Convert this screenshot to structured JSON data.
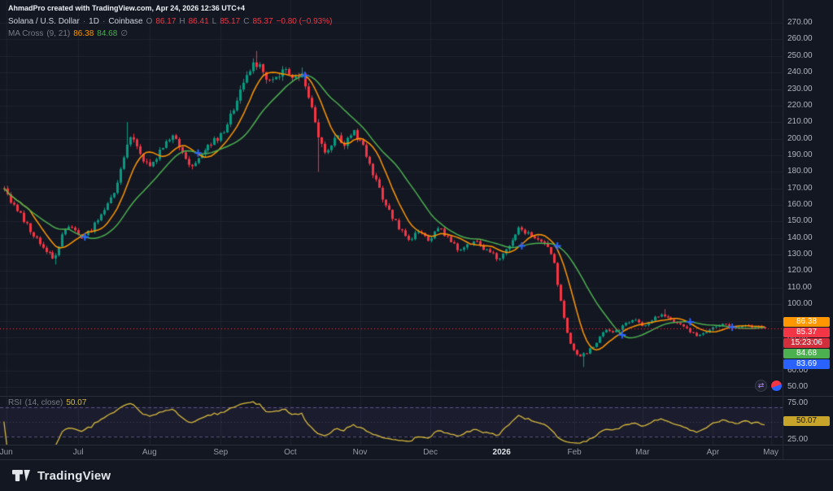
{
  "watermark": "AhmadPro created with TradingView.com, Apr 24, 2026 12:36 UTC+4",
  "legend": {
    "symbol": "Solana / U.S. Dollar",
    "sep": "·",
    "interval": "1D",
    "exchange": "Coinbase",
    "ohlc": {
      "o_label": "O",
      "o": "86.17",
      "h_label": "H",
      "h": "86.41",
      "l_label": "L",
      "l": "85.17",
      "c_label": "C",
      "c": "85.37",
      "change": "−0.80 (−0.93%)"
    }
  },
  "indicator_legend": {
    "title": "MA Cross",
    "params": "(9, 21)",
    "fast_value": "86.38",
    "slow_value": "84.68",
    "options_icon": "∅"
  },
  "rsi_legend": {
    "title": "RSI",
    "params": "(14, close)",
    "value": "50.07"
  },
  "axis_badges": [
    {
      "text": "86.38",
      "bg": "#ff9800",
      "fg": "#ffffff"
    },
    {
      "text": "85.37",
      "bg": "#f23645",
      "fg": "#ffffff"
    },
    {
      "text": "15:23:06",
      "bg": "#d32e3c",
      "fg": "#ffffff"
    },
    {
      "text": "84.68",
      "bg": "#4caf50",
      "fg": "#ffffff"
    },
    {
      "text": "83.69",
      "bg": "#2962ff",
      "fg": "#ffffff"
    }
  ],
  "rsi_badge": {
    "text": "50.07",
    "value": 50.07,
    "bg": "#c7a42a",
    "fg": "#131722"
  },
  "price_axis": {
    "min": 50,
    "max": 270,
    "step": 10
  },
  "rsi_axis": {
    "values": [
      75,
      50,
      25
    ],
    "ticks": [
      "75.00",
      "50.00",
      "25.00"
    ]
  },
  "footer": {
    "brand": "TradingView"
  },
  "colors": {
    "background": "#131722",
    "grid": "rgba(42,46,57,0.55)",
    "up": "#089981",
    "down": "#f23645",
    "ma_fast": "#ff9800",
    "ma_slow": "#4caf50",
    "cross_marker": "#2962ff",
    "rsi_line": "#d8bb3e",
    "rsi_band_line": "rgba(149,129,214,0.55)",
    "rsi_band_fill": "rgba(126,87,194,0.08)",
    "axis_text": "#b2b5be"
  },
  "chart_data": {
    "type": "candlestick",
    "title": "Solana / U.S. Dollar · 1D · Coinbase",
    "interval": "1D",
    "exchange": "Coinbase",
    "ylim": [
      48,
      272
    ],
    "current_price": 85.37,
    "candle_count": 236,
    "last_candle": {
      "open": 86.17,
      "high": 86.41,
      "low": 85.17,
      "close": 85.37
    },
    "x_ticks": [
      {
        "label": "Jun",
        "pos": 0.008
      },
      {
        "label": "Jul",
        "pos": 0.1
      },
      {
        "label": "Aug",
        "pos": 0.191
      },
      {
        "label": "Sep",
        "pos": 0.282
      },
      {
        "label": "Oct",
        "pos": 0.371
      },
      {
        "label": "Nov",
        "pos": 0.46
      },
      {
        "label": "Dec",
        "pos": 0.55
      },
      {
        "label": "2026",
        "pos": 0.641,
        "em": true
      },
      {
        "label": "Feb",
        "pos": 0.734
      },
      {
        "label": "Mar",
        "pos": 0.821
      },
      {
        "label": "Apr",
        "pos": 0.911
      },
      {
        "label": "May",
        "pos": 0.985
      }
    ],
    "indicators": {
      "ma_cross": {
        "name": "MA Cross",
        "fast": 9,
        "slow": 21,
        "fast_value": 86.38,
        "slow_value": 84.68
      },
      "rsi": {
        "name": "RSI",
        "period": 14,
        "source": "close",
        "value": 50.07,
        "bands": [
          70,
          30
        ],
        "scale_labels": [
          75,
          50,
          25
        ]
      }
    },
    "price_path": [
      [
        0.005,
        171
      ],
      [
        0.016,
        160
      ],
      [
        0.028,
        152
      ],
      [
        0.04,
        143
      ],
      [
        0.052,
        136
      ],
      [
        0.062,
        131
      ],
      [
        0.07,
        127
      ],
      [
        0.078,
        140
      ],
      [
        0.086,
        147
      ],
      [
        0.095,
        144
      ],
      [
        0.105,
        139
      ],
      [
        0.118,
        146
      ],
      [
        0.132,
        156
      ],
      [
        0.146,
        168
      ],
      [
        0.158,
        188
      ],
      [
        0.166,
        202
      ],
      [
        0.174,
        194
      ],
      [
        0.184,
        186
      ],
      [
        0.192,
        182
      ],
      [
        0.204,
        192
      ],
      [
        0.218,
        203
      ],
      [
        0.23,
        194
      ],
      [
        0.244,
        181
      ],
      [
        0.257,
        189
      ],
      [
        0.27,
        197
      ],
      [
        0.281,
        201
      ],
      [
        0.293,
        212
      ],
      [
        0.306,
        228
      ],
      [
        0.318,
        241
      ],
      [
        0.328,
        246
      ],
      [
        0.34,
        236
      ],
      [
        0.352,
        238
      ],
      [
        0.363,
        241
      ],
      [
        0.374,
        236
      ],
      [
        0.384,
        239
      ],
      [
        0.395,
        224
      ],
      [
        0.406,
        199
      ],
      [
        0.417,
        192
      ],
      [
        0.428,
        201
      ],
      [
        0.44,
        197
      ],
      [
        0.451,
        204
      ],
      [
        0.463,
        198
      ],
      [
        0.474,
        182
      ],
      [
        0.486,
        167
      ],
      [
        0.498,
        155
      ],
      [
        0.51,
        146
      ],
      [
        0.522,
        139
      ],
      [
        0.534,
        143
      ],
      [
        0.547,
        139
      ],
      [
        0.559,
        146
      ],
      [
        0.572,
        141
      ],
      [
        0.584,
        133
      ],
      [
        0.597,
        136
      ],
      [
        0.61,
        137
      ],
      [
        0.623,
        131
      ],
      [
        0.636,
        128
      ],
      [
        0.649,
        134
      ],
      [
        0.662,
        145
      ],
      [
        0.674,
        143
      ],
      [
        0.687,
        139
      ],
      [
        0.699,
        137
      ],
      [
        0.708,
        124
      ],
      [
        0.718,
        97
      ],
      [
        0.728,
        76
      ],
      [
        0.74,
        68
      ],
      [
        0.75,
        71
      ],
      [
        0.76,
        76
      ],
      [
        0.772,
        84
      ],
      [
        0.785,
        83
      ],
      [
        0.798,
        88
      ],
      [
        0.81,
        90
      ],
      [
        0.822,
        87
      ],
      [
        0.835,
        92
      ],
      [
        0.847,
        94
      ],
      [
        0.858,
        90
      ],
      [
        0.869,
        87
      ],
      [
        0.88,
        84
      ],
      [
        0.891,
        81
      ],
      [
        0.902,
        83
      ],
      [
        0.913,
        87
      ],
      [
        0.926,
        88
      ],
      [
        0.938,
        86
      ],
      [
        0.95,
        87
      ],
      [
        0.963,
        86
      ],
      [
        0.977,
        85.37
      ]
    ],
    "extremes": [
      {
        "x": 0.07,
        "type": "low",
        "price": 124
      },
      {
        "x": 0.163,
        "type": "high",
        "price": 210
      },
      {
        "x": 0.328,
        "type": "high",
        "price": 253
      },
      {
        "x": 0.384,
        "type": "high",
        "price": 243
      },
      {
        "x": 0.406,
        "type": "low",
        "price": 180
      },
      {
        "x": 0.744,
        "type": "low",
        "price": 62
      },
      {
        "x": 0.847,
        "type": "high",
        "price": 97
      }
    ]
  }
}
